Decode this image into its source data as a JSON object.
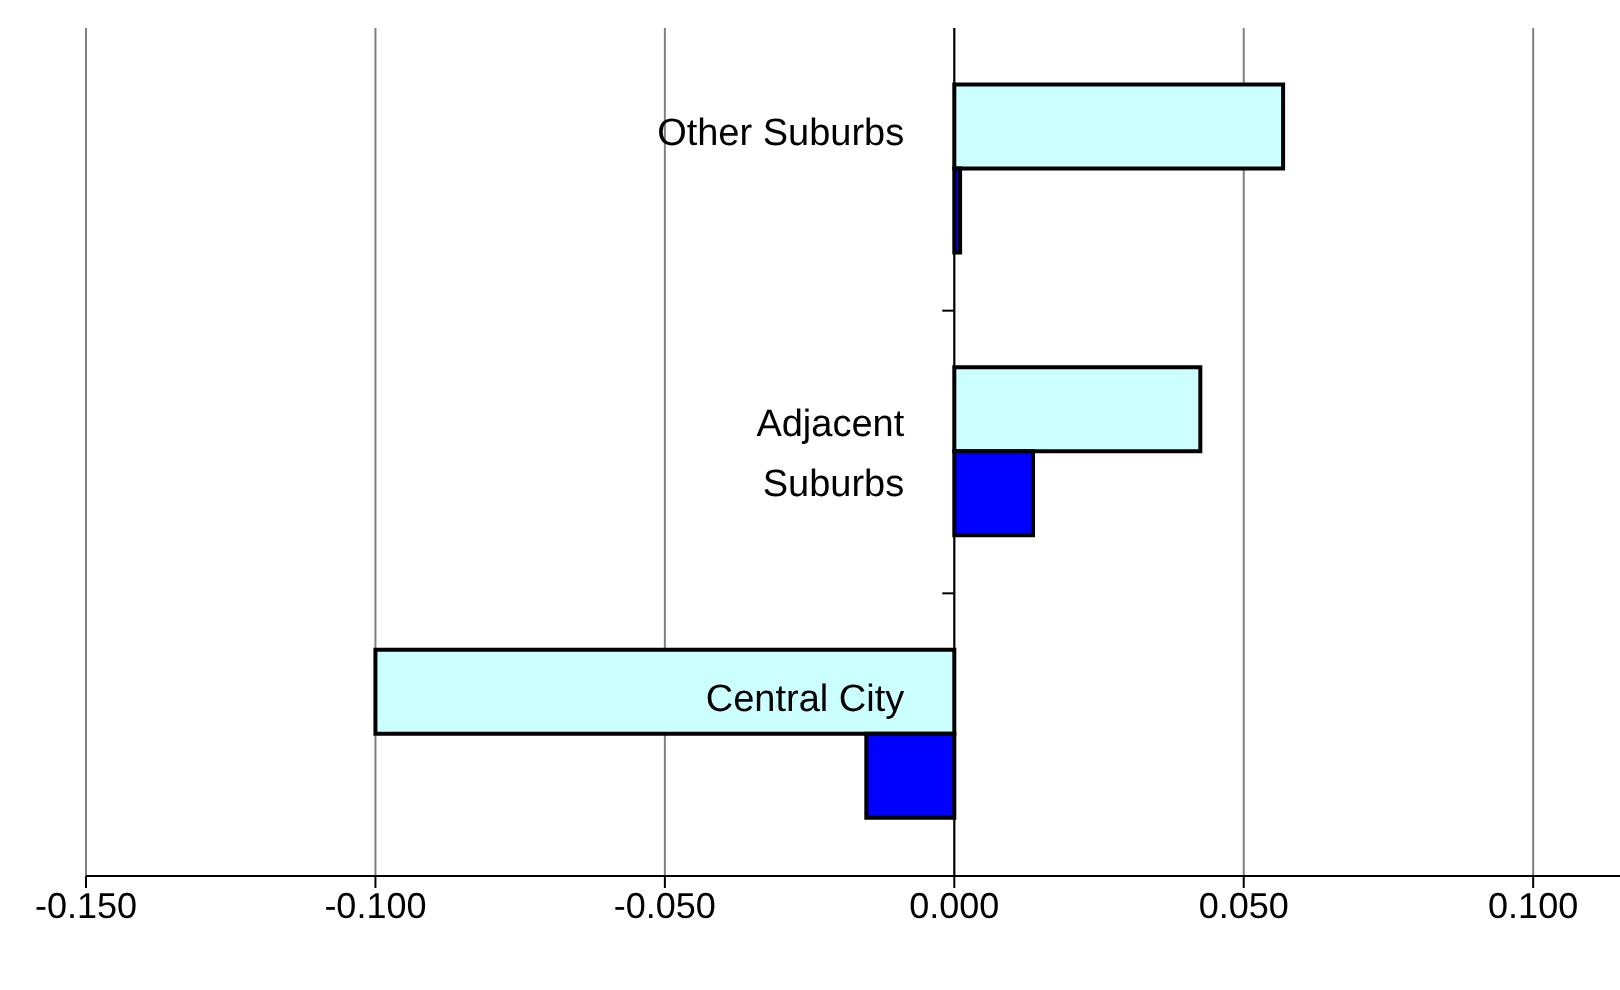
{
  "chart_data": {
    "type": "bar",
    "orientation": "horizontal",
    "categories": [
      "Other Suburbs",
      "Adjacent Suburbs",
      "Central City"
    ],
    "series": [
      {
        "color": "#ccffff",
        "values": [
          0.0568,
          0.0425,
          -0.1
        ]
      },
      {
        "color": "#0000ff",
        "values": [
          0.001,
          0.0136,
          -0.0152
        ]
      }
    ],
    "xlim": [
      -0.15,
      0.115
    ],
    "xticks": [
      {
        "value": -0.15,
        "label": "-0.150"
      },
      {
        "value": -0.1,
        "label": "-0.100"
      },
      {
        "value": -0.05,
        "label": "-0.050"
      },
      {
        "value": 0,
        "label": "0.000"
      },
      {
        "value": 0.05,
        "label": "0.050"
      },
      {
        "value": 0.1,
        "label": "0.100"
      }
    ],
    "grid": "x"
  }
}
